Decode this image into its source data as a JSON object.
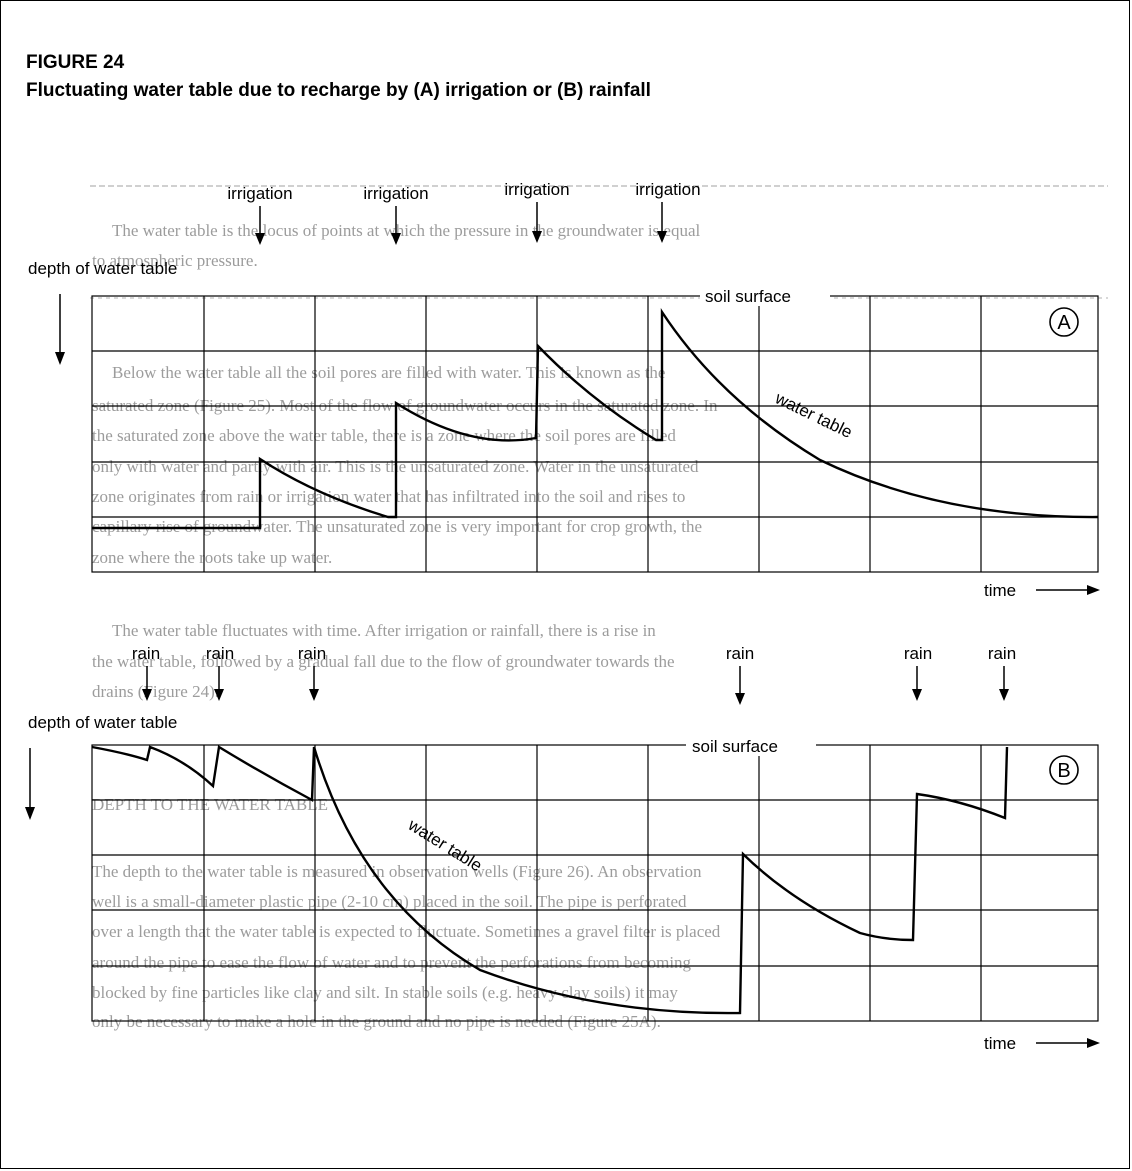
{
  "figure": {
    "number": "FIGURE 24",
    "caption": "Fluctuating water table due to recharge by (A) irrigation or (B) rainfall"
  },
  "panel_a": {
    "badge": "A",
    "y_axis_label": "depth of water table",
    "top_label": "soil surface",
    "curve_label": "water table",
    "x_axis_label": "time",
    "events": [
      "irrigation",
      "irrigation",
      "irrigation",
      "irrigation"
    ]
  },
  "panel_b": {
    "badge": "B",
    "y_axis_label": "depth of water table",
    "top_label": "soil surface",
    "curve_label": "water table",
    "x_axis_label": "time",
    "events": [
      "rain",
      "rain",
      "rain",
      "rain",
      "rain",
      "rain"
    ]
  },
  "background_text": [
    "The water table is the locus of points at which the pressure in the groundwater is equal",
    "to atmospheric pressure.",
    "Below the water table all the soil pores are filled with water. This is known as the",
    "saturated zone (Figure 25). Most of the flow of groundwater occurs in the saturated zone. In",
    "the saturated zone above the water table, there is a zone where the soil pores are filled",
    "only with water and partly with air. This is the unsaturated zone. Water in the unsaturated",
    "zone originates from rain or irrigation water that has infiltrated into the soil and rises to",
    "capillary rise of groundwater. The unsaturated zone is very important for crop growth, the",
    "zone where the roots take up water.",
    "The water table fluctuates with time. After irrigation or rainfall, there is a rise in",
    "the water table, followed by a gradual fall due to the flow of groundwater towards the",
    "drains (Figure 24).",
    "DEPTH TO THE WATER TABLE",
    "The depth to the water table is measured in observation wells (Figure 26). An observation",
    "well is a small-diameter plastic pipe (2-10 cm) placed in the soil. The pipe is perforated",
    "over a length that the water table is expected to fluctuate. Sometimes a gravel filter is placed",
    "around the pipe to ease the flow of water and to prevent the perforations from becoming",
    "blocked by fine particles like clay and silt. In stable soils (e.g. heavy clay soils) it may",
    "only be necessary to make a hole in the ground and no pipe is needed (Figure 25A)."
  ]
}
